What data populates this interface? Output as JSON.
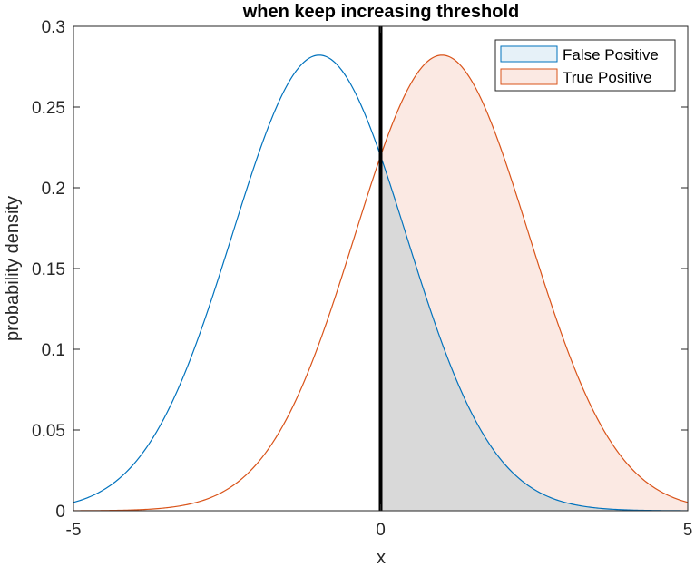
{
  "chart_data": {
    "type": "area",
    "title": "when keep increasing threshold",
    "xlabel": "x",
    "ylabel": "probability density",
    "xlim": [
      -5,
      5
    ],
    "ylim": [
      0,
      0.3
    ],
    "xticks": [
      -5,
      0,
      5
    ],
    "xtick_labels": [
      "-5",
      "0",
      "5"
    ],
    "yticks": [
      0,
      0.05,
      0.1,
      0.15,
      0.2,
      0.25,
      0.3
    ],
    "ytick_labels": [
      "0",
      "0.05",
      "0.1",
      "0.15",
      "0.2",
      "0.25",
      "0.3"
    ],
    "threshold": 0,
    "legend_position": "top-right",
    "series": [
      {
        "name": "False Positive",
        "distribution": "normal",
        "mean": -1,
        "std": 1.414,
        "peak_density": 0.282,
        "line_color": "#0072BD",
        "fill_color": "#d9d9d9",
        "legend_fill": "#e6f1f8",
        "x": [
          -5,
          -4,
          -3,
          -2,
          -1,
          0,
          1,
          2,
          3,
          4,
          5
        ],
        "values": [
          0.0051,
          0.0295,
          0.1038,
          0.2197,
          0.2821,
          0.2197,
          0.1038,
          0.0295,
          0.0051,
          0.0005,
          0.0
        ]
      },
      {
        "name": "True Positive",
        "distribution": "normal",
        "mean": 1,
        "std": 1.414,
        "peak_density": 0.282,
        "line_color": "#D95319",
        "fill_color": "#fbe9e3",
        "legend_fill": "#fbe9e3",
        "x": [
          -5,
          -4,
          -3,
          -2,
          -1,
          0,
          1,
          2,
          3,
          4,
          5
        ],
        "values": [
          0.0,
          0.0005,
          0.0051,
          0.0295,
          0.1038,
          0.2197,
          0.2821,
          0.2197,
          0.1038,
          0.0295,
          0.0051
        ]
      }
    ]
  }
}
